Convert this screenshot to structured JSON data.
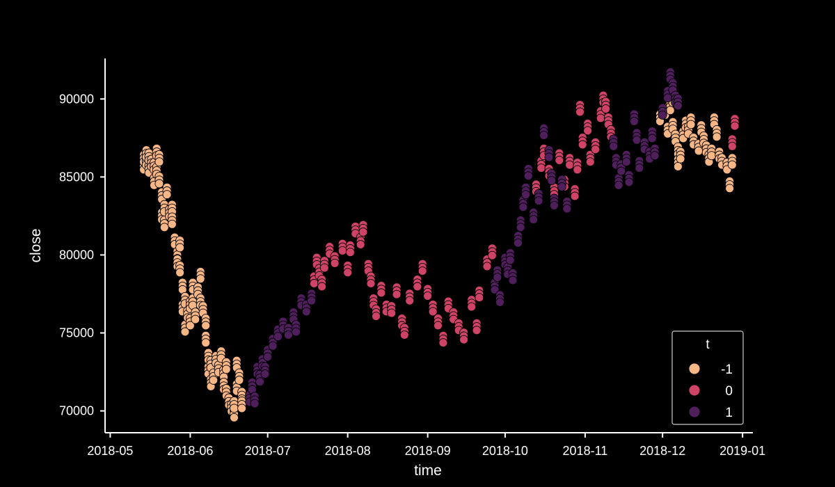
{
  "chart_data": {
    "type": "scatter",
    "xlabel": "time",
    "ylabel": "close",
    "x_range": [
      "2018-04-29",
      "2019-01-05"
    ],
    "y_range": [
      68600,
      92600
    ],
    "x_ticks": [
      "2018-05",
      "2018-06",
      "2018-07",
      "2018-08",
      "2018-09",
      "2018-10",
      "2018-11",
      "2018-12",
      "2019-01"
    ],
    "y_ticks": [
      70000,
      75000,
      80000,
      85000,
      90000
    ],
    "grid": false,
    "legend": {
      "title": "t",
      "position": "bottom-right",
      "entries": [
        {
          "label": "-1",
          "color": "#f7b685"
        },
        {
          "label": "0",
          "color": "#cf4367"
        },
        {
          "label": "1",
          "color": "#4f1f5c"
        }
      ]
    },
    "marker_edge_color": "#000000",
    "background_color": "#000000",
    "foreground_color": "#ffffff",
    "series": [
      {
        "name": "-1",
        "color": "#f7b685",
        "points": [
          [
            "2018-05-14",
            85700
          ],
          [
            "2018-05-14",
            86200
          ],
          [
            "2018-05-15",
            86000
          ],
          [
            "2018-05-15",
            86500
          ],
          [
            "2018-05-16",
            85500
          ],
          [
            "2018-05-16",
            86300
          ],
          [
            "2018-05-17",
            85900
          ],
          [
            "2018-05-18",
            85700
          ],
          [
            "2018-05-18",
            84700
          ],
          [
            "2018-05-19",
            86600
          ],
          [
            "2018-05-19",
            85400
          ],
          [
            "2018-05-20",
            86200
          ],
          [
            "2018-05-20",
            84800
          ],
          [
            "2018-05-21",
            83800
          ],
          [
            "2018-05-21",
            82500
          ],
          [
            "2018-05-22",
            83000
          ],
          [
            "2018-05-22",
            82000
          ],
          [
            "2018-05-23",
            84100
          ],
          [
            "2018-05-24",
            82700
          ],
          [
            "2018-05-25",
            83000
          ],
          [
            "2018-05-25",
            82200
          ],
          [
            "2018-05-26",
            80900
          ],
          [
            "2018-05-27",
            80000
          ],
          [
            "2018-05-27",
            79500
          ],
          [
            "2018-05-28",
            80700
          ],
          [
            "2018-05-28",
            79100
          ],
          [
            "2018-05-29",
            78000
          ],
          [
            "2018-05-29",
            76600
          ],
          [
            "2018-05-30",
            75300
          ],
          [
            "2018-05-30",
            77100
          ],
          [
            "2018-05-31",
            76200
          ],
          [
            "2018-06-01",
            76800
          ],
          [
            "2018-06-01",
            75700
          ],
          [
            "2018-06-02",
            78000
          ],
          [
            "2018-06-02",
            77000
          ],
          [
            "2018-06-03",
            76100
          ],
          [
            "2018-06-04",
            77700
          ],
          [
            "2018-06-05",
            78700
          ],
          [
            "2018-06-05",
            77000
          ],
          [
            "2018-06-06",
            76500
          ],
          [
            "2018-06-07",
            75700
          ],
          [
            "2018-06-07",
            74600
          ],
          [
            "2018-06-08",
            73500
          ],
          [
            "2018-06-08",
            72600
          ],
          [
            "2018-06-09",
            71800
          ],
          [
            "2018-06-09",
            73000
          ],
          [
            "2018-06-10",
            72200
          ],
          [
            "2018-06-11",
            73300
          ],
          [
            "2018-06-12",
            72700
          ],
          [
            "2018-06-13",
            73600
          ],
          [
            "2018-06-14",
            72400
          ],
          [
            "2018-06-14",
            71600
          ],
          [
            "2018-06-15",
            72900
          ],
          [
            "2018-06-15",
            71200
          ],
          [
            "2018-06-16",
            70600
          ],
          [
            "2018-06-17",
            70200
          ],
          [
            "2018-06-18",
            69800
          ],
          [
            "2018-06-18",
            70400
          ],
          [
            "2018-06-19",
            71500
          ],
          [
            "2018-06-19",
            73000
          ],
          [
            "2018-06-20",
            72200
          ],
          [
            "2018-06-21",
            71000
          ],
          [
            "2018-06-21",
            70400
          ],
          [
            "2018-11-30",
            88800
          ],
          [
            "2018-12-02",
            89200
          ],
          [
            "2018-12-03",
            88000
          ],
          [
            "2018-12-04",
            89500
          ],
          [
            "2018-12-05",
            90000
          ],
          [
            "2018-12-05",
            88300
          ],
          [
            "2018-12-06",
            87500
          ],
          [
            "2018-12-07",
            86700
          ],
          [
            "2018-12-07",
            85900
          ],
          [
            "2018-12-08",
            86400
          ],
          [
            "2018-12-09",
            87700
          ],
          [
            "2018-12-10",
            88400
          ],
          [
            "2018-12-11",
            88000
          ],
          [
            "2018-12-12",
            88600
          ],
          [
            "2018-12-13",
            87300
          ],
          [
            "2018-12-15",
            86900
          ],
          [
            "2018-12-16",
            88100
          ],
          [
            "2018-12-17",
            87400
          ],
          [
            "2018-12-18",
            86800
          ],
          [
            "2018-12-19",
            86200
          ],
          [
            "2018-12-20",
            86600
          ],
          [
            "2018-12-21",
            88600
          ],
          [
            "2018-12-22",
            87800
          ],
          [
            "2018-12-23",
            86400
          ],
          [
            "2018-12-24",
            86000
          ],
          [
            "2018-12-26",
            85700
          ],
          [
            "2018-12-27",
            84500
          ],
          [
            "2018-12-28",
            86000
          ]
        ]
      },
      {
        "name": "0",
        "color": "#cf4367",
        "points": [
          [
            "2018-07-19",
            78400
          ],
          [
            "2018-07-20",
            79600
          ],
          [
            "2018-07-21",
            78900
          ],
          [
            "2018-07-22",
            78200
          ],
          [
            "2018-07-23",
            79400
          ],
          [
            "2018-07-25",
            80300
          ],
          [
            "2018-07-27",
            79700
          ],
          [
            "2018-07-30",
            80500
          ],
          [
            "2018-08-01",
            79100
          ],
          [
            "2018-08-02",
            80400
          ],
          [
            "2018-08-04",
            81600
          ],
          [
            "2018-08-06",
            80900
          ],
          [
            "2018-08-07",
            81700
          ],
          [
            "2018-08-09",
            79200
          ],
          [
            "2018-08-10",
            78400
          ],
          [
            "2018-08-11",
            77000
          ],
          [
            "2018-08-12",
            76300
          ],
          [
            "2018-08-14",
            77800
          ],
          [
            "2018-08-16",
            76600
          ],
          [
            "2018-08-18",
            76500
          ],
          [
            "2018-08-20",
            77700
          ],
          [
            "2018-08-22",
            75700
          ],
          [
            "2018-08-23",
            75100
          ],
          [
            "2018-08-25",
            77300
          ],
          [
            "2018-08-28",
            78200
          ],
          [
            "2018-08-30",
            79200
          ],
          [
            "2018-09-01",
            77600
          ],
          [
            "2018-09-03",
            76600
          ],
          [
            "2018-09-05",
            75700
          ],
          [
            "2018-09-07",
            74600
          ],
          [
            "2018-09-09",
            76800
          ],
          [
            "2018-09-11",
            76100
          ],
          [
            "2018-09-13",
            75400
          ],
          [
            "2018-09-15",
            74800
          ],
          [
            "2018-09-18",
            76900
          ],
          [
            "2018-09-20",
            75400
          ],
          [
            "2018-09-21",
            77500
          ],
          [
            "2018-09-24",
            79500
          ],
          [
            "2018-09-26",
            80200
          ],
          [
            "2018-10-13",
            84300
          ],
          [
            "2018-10-15",
            85800
          ],
          [
            "2018-10-16",
            86600
          ],
          [
            "2018-10-18",
            85300
          ],
          [
            "2018-10-20",
            84100
          ],
          [
            "2018-10-22",
            86300
          ],
          [
            "2018-10-24",
            84600
          ],
          [
            "2018-10-26",
            86000
          ],
          [
            "2018-10-28",
            84000
          ],
          [
            "2018-10-29",
            85700
          ],
          [
            "2018-10-30",
            89400
          ],
          [
            "2018-10-31",
            87300
          ],
          [
            "2018-11-02",
            88200
          ],
          [
            "2018-11-03",
            86200
          ],
          [
            "2018-11-05",
            87000
          ],
          [
            "2018-11-07",
            89000
          ],
          [
            "2018-11-08",
            90000
          ],
          [
            "2018-11-09",
            89600
          ],
          [
            "2018-11-10",
            88600
          ],
          [
            "2018-11-11",
            87800
          ],
          [
            "2018-12-28",
            87200
          ],
          [
            "2018-12-29",
            88500
          ]
        ]
      },
      {
        "name": "1",
        "color": "#4f1f5c",
        "points": [
          [
            "2018-06-24",
            70800
          ],
          [
            "2018-06-25",
            71600
          ],
          [
            "2018-06-26",
            70700
          ],
          [
            "2018-06-27",
            72600
          ],
          [
            "2018-06-28",
            72100
          ],
          [
            "2018-06-29",
            73100
          ],
          [
            "2018-06-30",
            72600
          ],
          [
            "2018-07-01",
            73700
          ],
          [
            "2018-07-03",
            74400
          ],
          [
            "2018-07-05",
            75000
          ],
          [
            "2018-07-07",
            75500
          ],
          [
            "2018-07-09",
            75100
          ],
          [
            "2018-07-11",
            76100
          ],
          [
            "2018-07-12",
            75300
          ],
          [
            "2018-07-14",
            77000
          ],
          [
            "2018-07-16",
            76600
          ],
          [
            "2018-07-18",
            77300
          ],
          [
            "2018-09-27",
            78000
          ],
          [
            "2018-09-28",
            78800
          ],
          [
            "2018-09-29",
            77200
          ],
          [
            "2018-10-01",
            79600
          ],
          [
            "2018-10-02",
            79000
          ],
          [
            "2018-10-03",
            79900
          ],
          [
            "2018-10-04",
            78600
          ],
          [
            "2018-10-06",
            81000
          ],
          [
            "2018-10-07",
            82000
          ],
          [
            "2018-10-08",
            83300
          ],
          [
            "2018-10-09",
            84100
          ],
          [
            "2018-10-10",
            85300
          ],
          [
            "2018-10-12",
            82500
          ],
          [
            "2018-10-14",
            83700
          ],
          [
            "2018-10-16",
            87900
          ],
          [
            "2018-10-18",
            86500
          ],
          [
            "2018-10-19",
            85000
          ],
          [
            "2018-10-20",
            83400
          ],
          [
            "2018-10-23",
            84600
          ],
          [
            "2018-10-25",
            83200
          ],
          [
            "2018-11-12",
            87200
          ],
          [
            "2018-11-13",
            86000
          ],
          [
            "2018-11-14",
            84700
          ],
          [
            "2018-11-15",
            85600
          ],
          [
            "2018-11-17",
            86200
          ],
          [
            "2018-11-18",
            84900
          ],
          [
            "2018-11-20",
            88800
          ],
          [
            "2018-11-21",
            87600
          ],
          [
            "2018-11-22",
            85800
          ],
          [
            "2018-11-24",
            87000
          ],
          [
            "2018-11-26",
            86400
          ],
          [
            "2018-11-27",
            87700
          ],
          [
            "2018-11-28",
            86600
          ],
          [
            "2018-12-01",
            89200
          ],
          [
            "2018-12-03",
            90300
          ],
          [
            "2018-12-04",
            91500
          ],
          [
            "2018-12-05",
            90800
          ],
          [
            "2018-12-06",
            90000
          ],
          [
            "2018-12-07",
            89800
          ]
        ]
      }
    ]
  }
}
